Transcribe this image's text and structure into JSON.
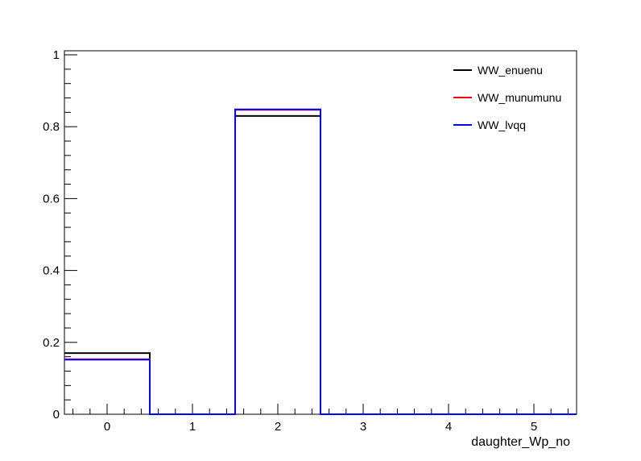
{
  "chart_data": {
    "type": "line",
    "style": "step-histogram",
    "title": "",
    "xlabel": "daughter_Wp_no",
    "ylabel": "",
    "xlim": [
      -0.5,
      5.5
    ],
    "ylim": [
      0,
      1.0
    ],
    "x_ticks": [
      0,
      1,
      2,
      3,
      4,
      5
    ],
    "y_ticks": [
      0,
      0.2,
      0.4,
      0.6,
      0.8,
      1
    ],
    "x_tick_labels": [
      "0",
      "1",
      "2",
      "3",
      "4",
      "5"
    ],
    "y_tick_labels": [
      "0",
      "0.2",
      "0.4",
      "0.6",
      "0.8",
      "1"
    ],
    "bin_edges": [
      -0.5,
      0.5,
      1.5,
      2.5,
      3.5,
      4.5,
      5.5
    ],
    "grid": false,
    "legend_position": "top-right",
    "series": [
      {
        "name": "WW_enuenu",
        "color": "#000000",
        "values": [
          0.17,
          0.0,
          0.83,
          0.0,
          0.0,
          0.0
        ]
      },
      {
        "name": "WW_munumunu",
        "color": "#ff0000",
        "values": [
          0.153,
          0.0,
          0.847,
          0.0,
          0.0,
          0.0
        ]
      },
      {
        "name": "WW_lvqq",
        "color": "#0000ff",
        "values": [
          0.152,
          0.0,
          0.848,
          0.0,
          0.0,
          0.0
        ]
      }
    ]
  }
}
